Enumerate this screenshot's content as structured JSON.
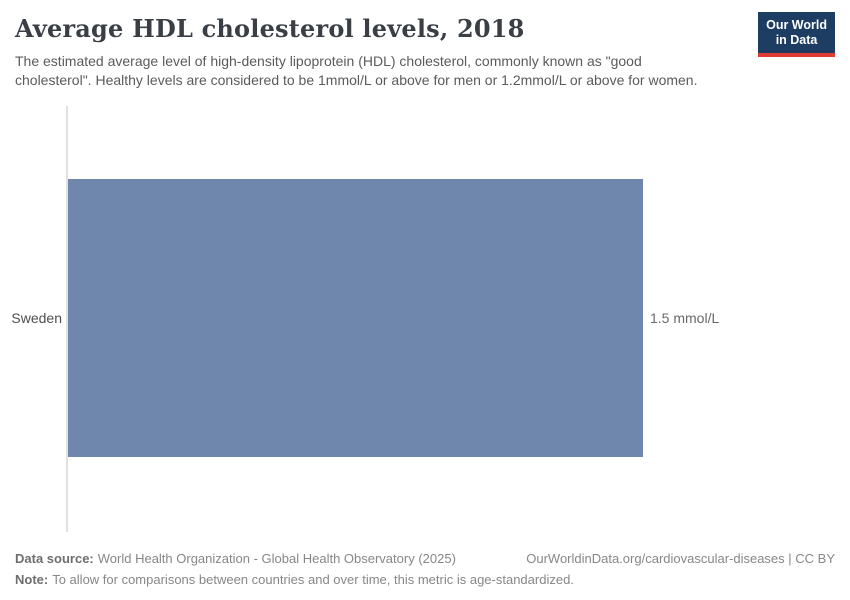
{
  "header": {
    "title": "Average HDL cholesterol levels, 2018",
    "subtitle": "The estimated average level of high-density lipoprotein (HDL) cholesterol, commonly known as \"good cholesterol\". Healthy levels are considered to be 1mmol/L or above for men or 1.2mmol/L or above for women.",
    "logo": {
      "line1": "Our World",
      "line2": "in Data"
    }
  },
  "chart_data": {
    "type": "bar",
    "orientation": "horizontal",
    "title": "Average HDL cholesterol levels, 2018",
    "categories": [
      "Sweden"
    ],
    "values": [
      1.5
    ],
    "unit": "mmol/L",
    "value_labels": [
      "1.5 mmol/L"
    ],
    "xlim": [
      0,
      1.5
    ],
    "grid": false,
    "legend": "none",
    "bar_color": "#6f87ac"
  },
  "footer": {
    "datasource_label": "Data source:",
    "datasource_text": "World Health Organization - Global Health Observatory (2025)",
    "link_text": "OurWorldinData.org/cardiovascular-diseases | CC BY",
    "note_label": "Note:",
    "note_text": "To allow for comparisons between countries and over time, this metric is age-standardized."
  },
  "colors": {
    "bar": "#6f87ac",
    "logo_bg": "#1d3d63",
    "logo_accent": "#dc3c31",
    "title_text": "#3a3f46",
    "subtitle_text": "#5b5b5b",
    "axis_line": "#e0e0e0"
  }
}
